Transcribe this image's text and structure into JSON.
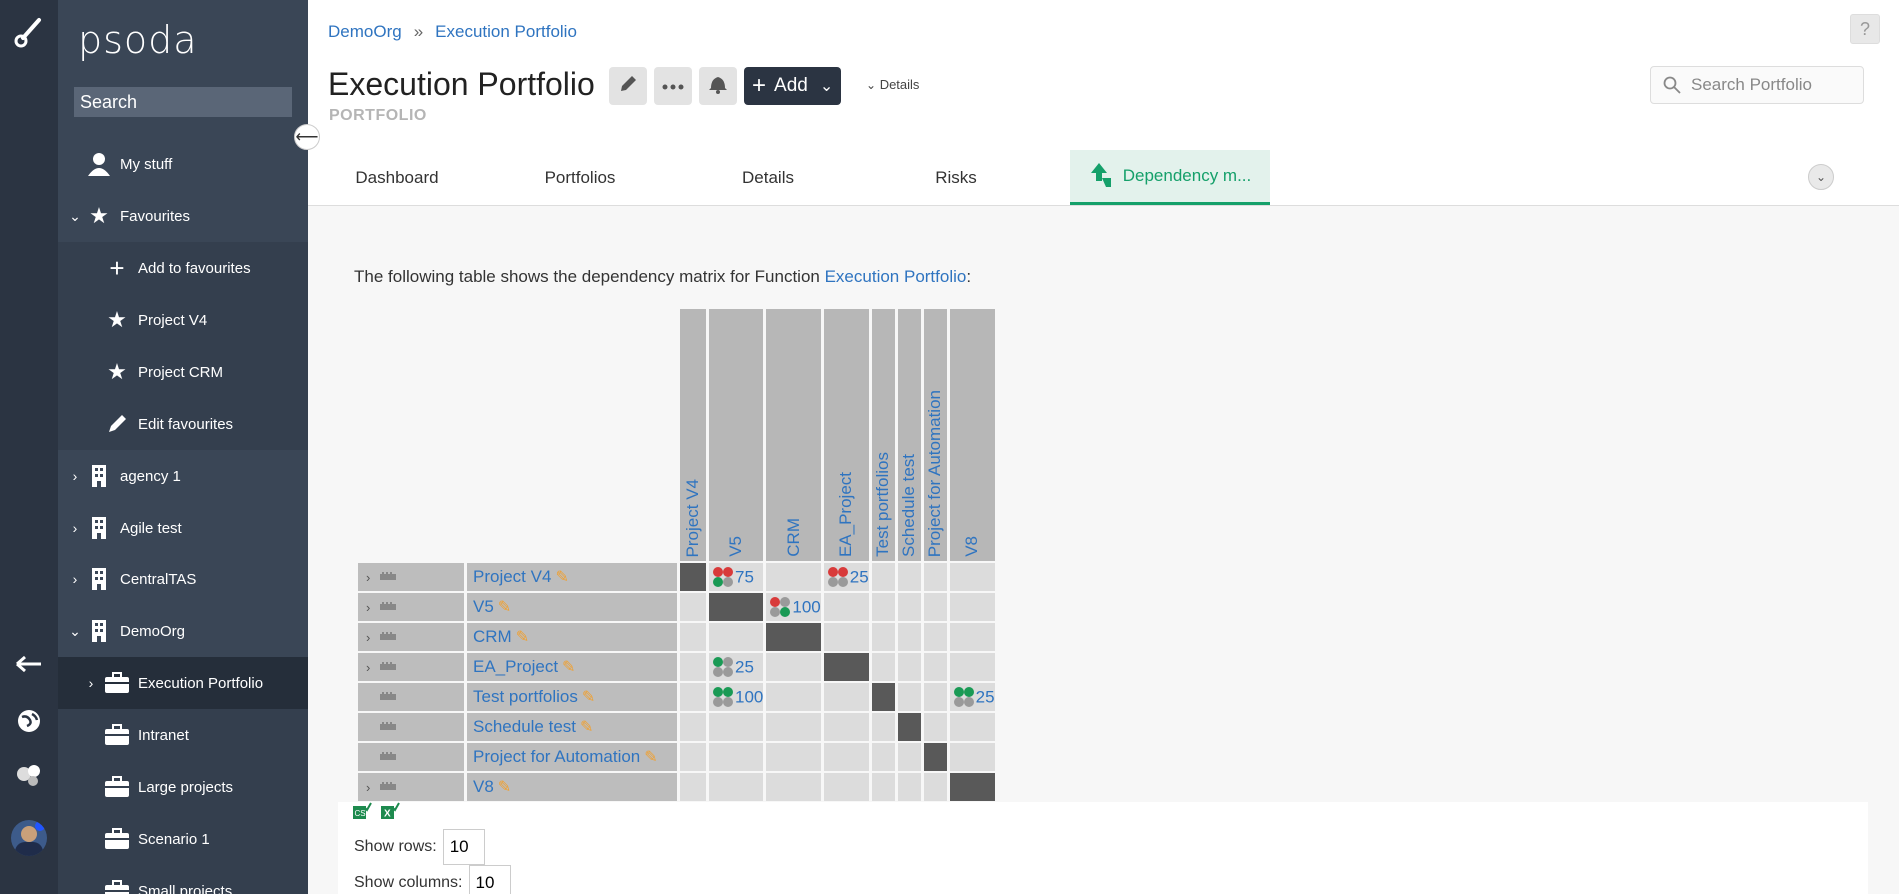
{
  "app": {
    "logo": "psoda"
  },
  "sidebar": {
    "search_placeholder": "Search",
    "items": [
      {
        "label": "My stuff"
      },
      {
        "label": "Favourites"
      },
      {
        "label": "Add to favourites"
      },
      {
        "label": "Project V4"
      },
      {
        "label": "Project CRM"
      },
      {
        "label": "Edit favourites"
      },
      {
        "label": "agency 1"
      },
      {
        "label": "Agile test"
      },
      {
        "label": "CentralTAS"
      },
      {
        "label": "DemoOrg"
      },
      {
        "label": "Execution Portfolio"
      },
      {
        "label": "Intranet"
      },
      {
        "label": "Large projects"
      },
      {
        "label": "Scenario 1"
      },
      {
        "label": "Small projects"
      }
    ]
  },
  "header": {
    "breadcrumb": [
      "DemoOrg",
      "»",
      "Execution Portfolio"
    ],
    "title": "Execution Portfolio",
    "type": "PORTFOLIO",
    "add_label": "Add",
    "details_label": "Details",
    "search_placeholder": "Search Portfolio",
    "help_label": "?"
  },
  "tabs": [
    {
      "label": "Dashboard"
    },
    {
      "label": "Portfolios"
    },
    {
      "label": "Details"
    },
    {
      "label": "Risks"
    },
    {
      "label": "Dependency m..."
    }
  ],
  "content": {
    "intro_prefix": "The following table shows the dependency matrix for Function ",
    "intro_link": "Execution Portfolio",
    "intro_suffix": ":",
    "columns": [
      "Project V4",
      "V5",
      "CRM",
      "EA_Project",
      "Test portfolios",
      "Schedule test",
      "Project for Automation",
      "V8"
    ],
    "rows": [
      {
        "name": "Project V4",
        "expand": true,
        "cells": {
          "1": {
            "value": "75",
            "dots": [
              "red",
              "red",
              "green",
              "grey"
            ]
          },
          "3": {
            "value": "25",
            "dots": [
              "red",
              "red",
              "grey",
              "grey"
            ]
          }
        }
      },
      {
        "name": "V5",
        "expand": true,
        "cells": {
          "2": {
            "value": "100",
            "dots": [
              "red",
              "grey",
              "grey",
              "green"
            ]
          }
        }
      },
      {
        "name": "CRM",
        "expand": true,
        "cells": {}
      },
      {
        "name": "EA_Project",
        "expand": true,
        "cells": {
          "1": {
            "value": "25",
            "dots": [
              "green",
              "grey",
              "grey",
              "grey"
            ]
          }
        }
      },
      {
        "name": "Test portfolios",
        "expand": false,
        "cells": {
          "1": {
            "value": "100",
            "dots": [
              "green",
              "green",
              "grey",
              "grey"
            ]
          },
          "7": {
            "value": "25",
            "dots": [
              "green",
              "green",
              "grey",
              "grey"
            ]
          }
        }
      },
      {
        "name": "Schedule test",
        "expand": false,
        "cells": {}
      },
      {
        "name": "Project for Automation",
        "expand": false,
        "cells": {}
      },
      {
        "name": "V8",
        "expand": true,
        "cells": {}
      }
    ],
    "show_rows_label": "Show rows:",
    "show_rows_value": "10",
    "show_columns_label": "Show columns:",
    "show_columns_value": "10"
  },
  "colors": {
    "accent": "#15a06a",
    "link": "#2f74c0",
    "sidebar": "#3a4656",
    "rail": "#2b3442"
  }
}
